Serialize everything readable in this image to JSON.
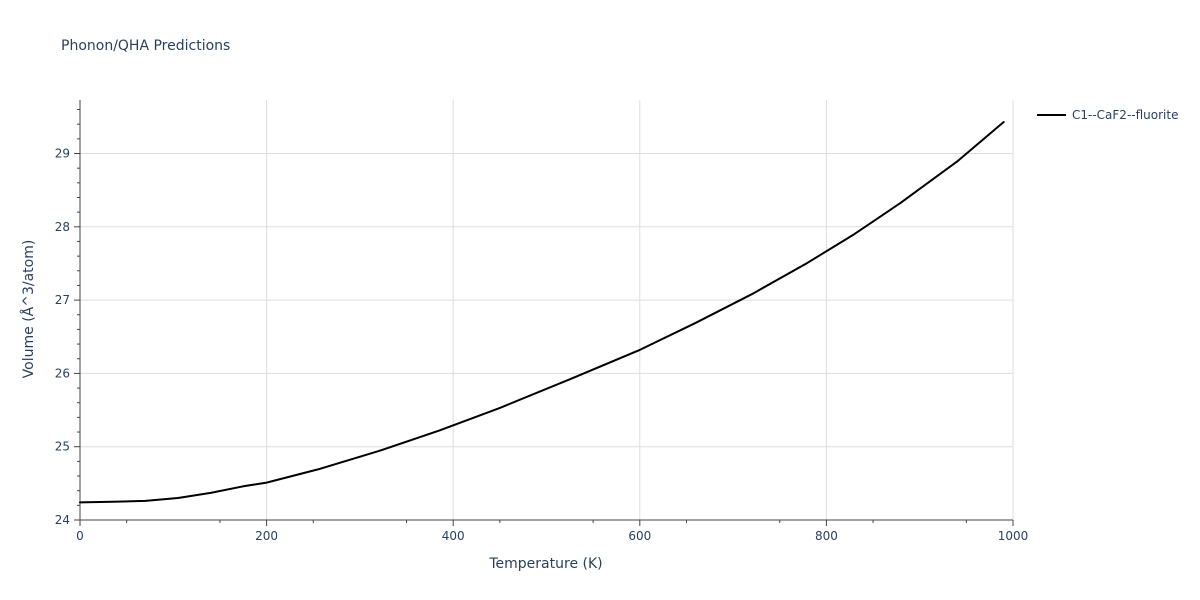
{
  "chart_data": {
    "type": "line",
    "title": "Phonon/QHA Predictions",
    "xlabel": "Temperature (K)",
    "ylabel": "Volume (Å^3/atom)",
    "xlim": [
      0,
      1000
    ],
    "ylim": [
      24.0,
      29.73
    ],
    "x_ticks": [
      0,
      200,
      400,
      600,
      800,
      1000
    ],
    "x_tick_labels": [
      "0",
      "200",
      "400",
      "600",
      "800",
      "1000"
    ],
    "y_ticks": [
      24,
      25,
      26,
      27,
      28,
      29
    ],
    "y_tick_labels": [
      "24",
      "25",
      "26",
      "27",
      "28",
      "29"
    ],
    "grid": true,
    "legend_position": "right",
    "series": [
      {
        "name": "C1--CaF2--fluorite",
        "color": "#000000",
        "x": [
          0,
          35,
          70,
          105,
          140,
          175,
          200,
          255,
          320,
          385,
          450,
          525,
          600,
          660,
          720,
          780,
          830,
          880,
          940,
          990
        ],
        "y": [
          24.24,
          24.25,
          24.26,
          24.3,
          24.37,
          24.46,
          24.51,
          24.69,
          24.94,
          25.22,
          25.53,
          25.92,
          26.32,
          26.69,
          27.08,
          27.51,
          27.9,
          28.33,
          28.89,
          29.43
        ]
      }
    ]
  }
}
